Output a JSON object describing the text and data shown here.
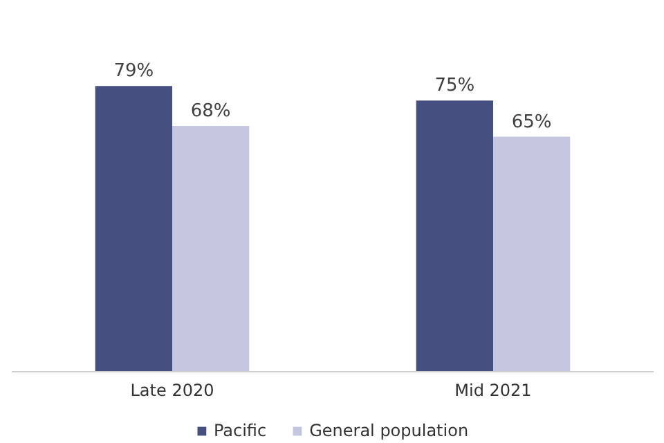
{
  "chart_data": {
    "type": "bar",
    "categories": [
      "Late 2020",
      "Mid 2021"
    ],
    "series": [
      {
        "name": "Pacific",
        "color": "#454f80",
        "values": [
          79,
          75
        ],
        "value_labels": [
          "79%",
          "75%"
        ]
      },
      {
        "name": "General population",
        "color": "#c4c7df",
        "values": [
          68,
          65
        ],
        "value_labels": [
          "68%",
          "65%"
        ]
      }
    ],
    "legend": "bottom",
    "tick_labels": "x"
  }
}
